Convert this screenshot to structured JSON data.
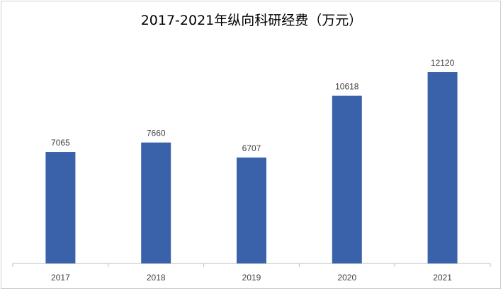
{
  "chart_data": {
    "type": "bar",
    "title": "2017-2021年纵向科研经费（万元）",
    "categories": [
      "2017",
      "2018",
      "2019",
      "2020",
      "2021"
    ],
    "values": [
      7065,
      7660,
      6707,
      10618,
      12120
    ],
    "data_labels": [
      "7065",
      "7660",
      "6707",
      "10618",
      "12120"
    ],
    "xlabel": "",
    "ylabel": "",
    "ylim": [
      0,
      14000
    ],
    "grid": false,
    "legend": "none",
    "bar_color": "#3A62AB"
  }
}
